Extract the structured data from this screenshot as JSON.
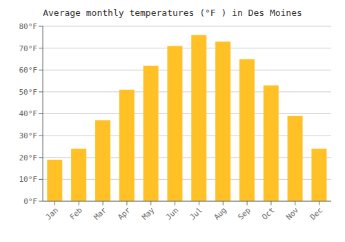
{
  "chart_data": {
    "type": "bar",
    "title": "Average monthly temperatures (°F ) in Des Moines",
    "categories": [
      "Jan",
      "Feb",
      "Mar",
      "Apr",
      "May",
      "Jun",
      "Jul",
      "Aug",
      "Sep",
      "Oct",
      "Nov",
      "Dec"
    ],
    "values": [
      19,
      24,
      37,
      51,
      62,
      71,
      76,
      73,
      65,
      53,
      39,
      24
    ],
    "color": "#FFC125",
    "ylim": [
      0,
      80
    ],
    "yticks": [
      {
        "value": 0,
        "label": "0°F"
      },
      {
        "value": 10,
        "label": "10°F"
      },
      {
        "value": 20,
        "label": "20°F"
      },
      {
        "value": 30,
        "label": "30°F"
      },
      {
        "value": 40,
        "label": "40°F"
      },
      {
        "value": 50,
        "label": "50°F"
      },
      {
        "value": 60,
        "label": "60°F"
      },
      {
        "value": 70,
        "label": "70°F"
      },
      {
        "value": 80,
        "label": "80°F"
      }
    ],
    "grid": true
  }
}
